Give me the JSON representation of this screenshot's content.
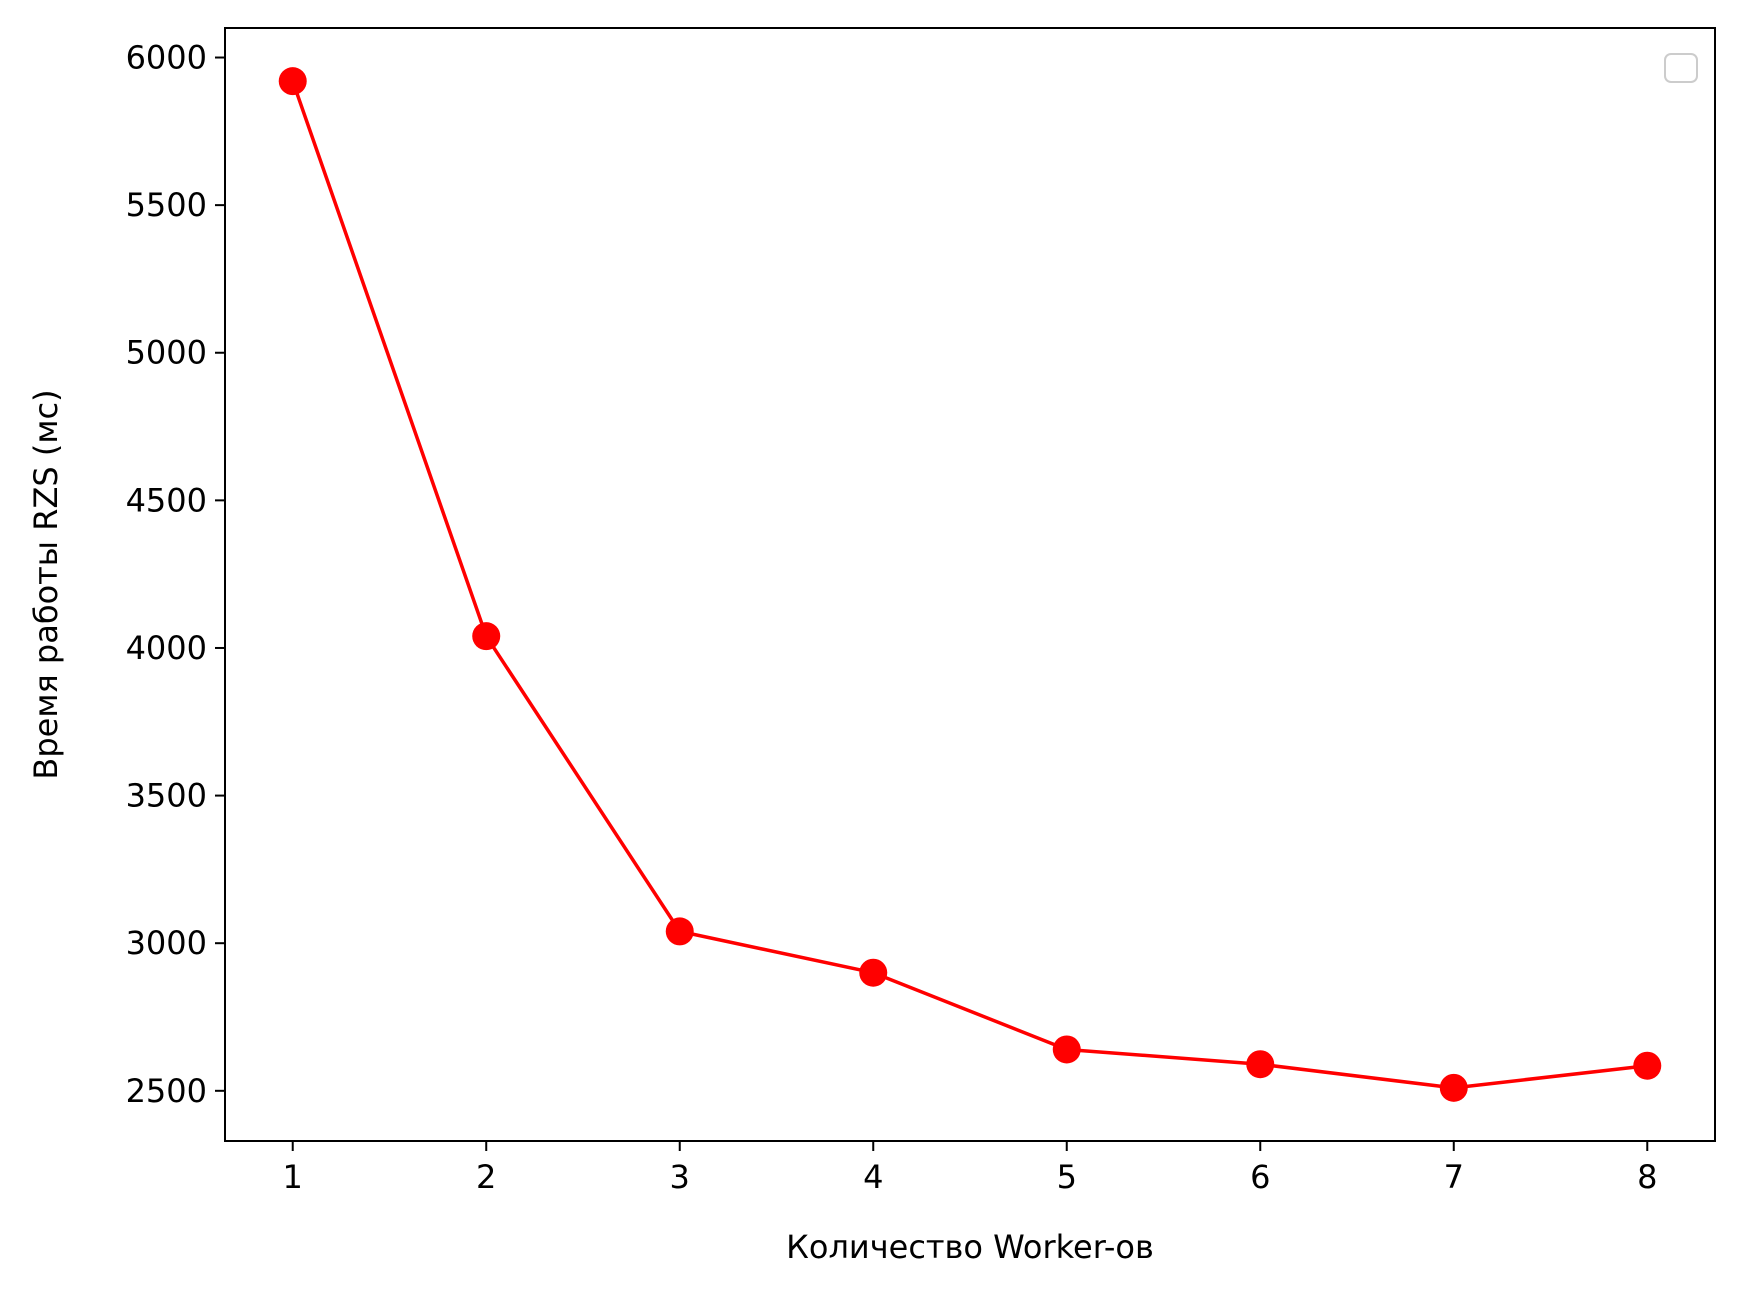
{
  "chart_data": {
    "type": "line",
    "title": "",
    "xlabel": "Количество Worker-ов",
    "ylabel": "Время работы RZS (мс)",
    "x": [
      1,
      2,
      3,
      4,
      5,
      6,
      7,
      8
    ],
    "series": [
      {
        "values": [
          5920,
          4040,
          3040,
          2900,
          2640,
          2590,
          2510,
          2585
        ],
        "color": "#ff0000",
        "marker": "circle"
      }
    ],
    "xlim": [
      0.65,
      8.35
    ],
    "ylim": [
      2330,
      6100
    ],
    "xticks": [
      1,
      2,
      3,
      4,
      5,
      6,
      7,
      8
    ],
    "yticks": [
      2500,
      3000,
      3500,
      4000,
      4500,
      5000,
      5500,
      6000
    ],
    "grid": false,
    "legend": {
      "position": "top-right",
      "entries": []
    }
  }
}
